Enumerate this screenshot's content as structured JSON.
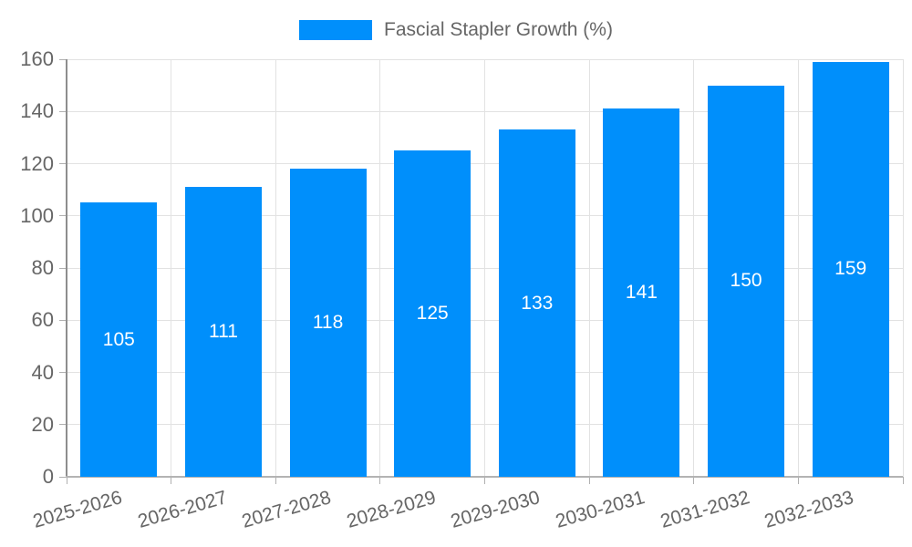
{
  "chart_data": {
    "type": "bar",
    "title": "Fascial Stapler Growth (%)",
    "categories": [
      "2025-2026",
      "2026-2027",
      "2027-2028",
      "2028-2029",
      "2029-2030",
      "2030-2031",
      "2031-2032",
      "2032-2033"
    ],
    "series": [
      {
        "name": "Fascial Stapler Growth (%)",
        "values": [
          105,
          111,
          118,
          125,
          133,
          141,
          150,
          159
        ]
      }
    ],
    "data_labels_shown": true,
    "xlabel": "",
    "ylabel": "",
    "ylim": [
      0,
      160
    ],
    "yticks": [
      0,
      20,
      40,
      60,
      80,
      100,
      120,
      140,
      160
    ],
    "grid": true,
    "legend_position": "top",
    "x_label_rotation_deg": -16,
    "colors": {
      "bar": "#008FFB",
      "bar_value_label": "#ffffff",
      "axis_text": "#666666",
      "legend_text": "#666666",
      "gridline": "#e2e2e2",
      "tick": "#b0b0b0",
      "background": "#ffffff"
    }
  }
}
